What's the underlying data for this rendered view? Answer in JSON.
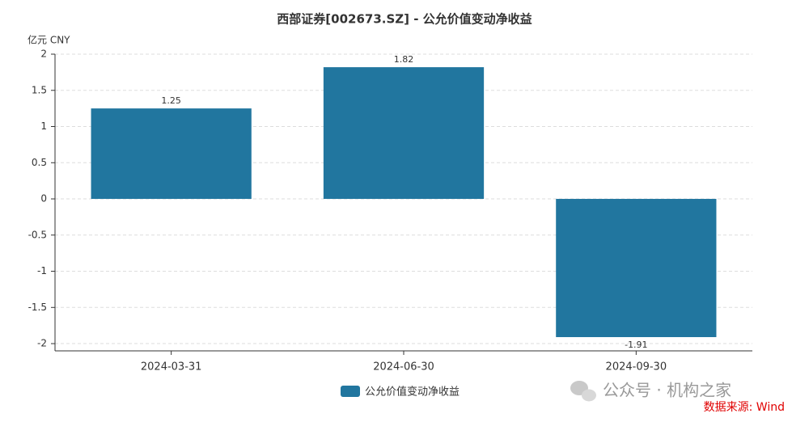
{
  "chart_data": {
    "type": "bar",
    "title": "西部证券[002673.SZ] - 公允价值变动净收益",
    "y_label": "亿元  CNY",
    "categories": [
      "2024-03-31",
      "2024-06-30",
      "2024-09-30"
    ],
    "series": [
      {
        "name": "公允价值变动净收益",
        "color": "#21769f",
        "values": [
          1.25,
          1.82,
          -1.91
        ]
      }
    ],
    "ylim": [
      -2.1,
      2
    ],
    "yticks": [
      2,
      1.5,
      1,
      0.5,
      0,
      -0.5,
      -1,
      -1.5,
      -2
    ],
    "grid": true,
    "legend": "bottom",
    "watermark": "公众号 · 机构之家",
    "source": "数据来源: Wind"
  }
}
